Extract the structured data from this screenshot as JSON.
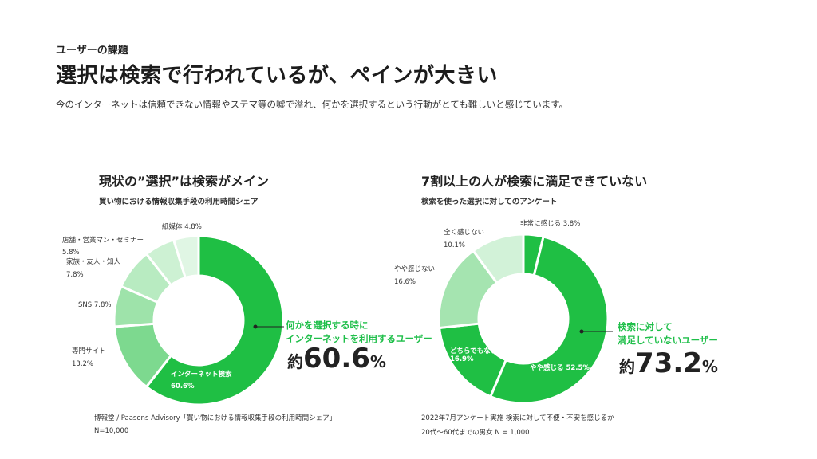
{
  "header": {
    "eyebrow": "ユーザーの課題",
    "title": "選択は検索で行われているが、ペインが大きい",
    "lead": "今のインターネットは信頼できない情報やステマ等の嘘で溢れ、何かを選択するという行動がとても難しいと感じています。"
  },
  "left": {
    "title": "現状の”選択”は検索がメイン",
    "subtitle": "買い物における情報収集手段の利用時間シェア",
    "callout_line1": "何かを選択する時に",
    "callout_line2": "インターネットを利用するユーザー",
    "big_prefix": "約",
    "big_value": "60.6",
    "big_unit": "%",
    "source_line1": "博報堂 / Paasons Advisory「買い物における情報収集手段の利用時間シェア」",
    "source_line2": "N=10,000",
    "labels": {
      "internet_name": "インターネット検索",
      "internet_value": "60.6%",
      "senmon_name": "専門サイト",
      "senmon_value": "13.2%",
      "sns": "SNS 7.8%",
      "kazoku_name": "家族・友人・知人",
      "kazoku_value": "7.8%",
      "tenpo_name": "店舗・営業マン・セミナー",
      "tenpo_value": "5.8%",
      "kami": "紙媒体 4.8%"
    }
  },
  "right": {
    "title": "7割以上の人が検索に満足できていない",
    "subtitle": "検索を使った選択に対してのアンケート",
    "callout_line1": "検索に対して",
    "callout_line2": "満足していないユーザー",
    "big_prefix": "約",
    "big_value": "73.2",
    "big_unit": "%",
    "note_line1": "2022年7月アンケート実施  検索に対して不便・不安を感じるか",
    "note_line2": "20代〜60代までの男女 N = 1,000",
    "labels": {
      "hijou": "非常に感じる 3.8%",
      "yaya_kanjiru": "やや感じる 52.5%",
      "dochira_name": "どちらでもない",
      "dochira_value": "16.9%",
      "yaya_kanjinai_name": "やや感じない",
      "yaya_kanjinai_value": "16.6%",
      "mattaku_name": "全く感じない",
      "mattaku_value": "10.1%"
    }
  },
  "chart_data": [
    {
      "type": "pie",
      "title": "現状の”選択”は検索がメイン",
      "subtitle": "買い物における情報収集手段の利用時間シェア",
      "categories": [
        "インターネット検索",
        "専門サイト",
        "SNS",
        "家族・友人・知人",
        "店舗・営業マン・セミナー",
        "紙媒体"
      ],
      "values": [
        60.6,
        13.2,
        7.8,
        7.8,
        5.8,
        4.8
      ],
      "colors": [
        "#1fbf44",
        "#7dd98f",
        "#9ee3aa",
        "#b8ebc1",
        "#cdf1d3",
        "#e0f6e4"
      ]
    },
    {
      "type": "pie",
      "title": "7割以上の人が検索に満足できていない",
      "subtitle": "検索を使った選択に対してのアンケート",
      "categories": [
        "非常に感じる",
        "やや感じる",
        "どちらでもない",
        "やや感じない",
        "全く感じない"
      ],
      "values": [
        3.8,
        52.5,
        16.9,
        16.6,
        10.1
      ],
      "colors": [
        "#1fbf44",
        "#1fbf44",
        "#1fbf44",
        "#a5e4b0",
        "#d2f2d8"
      ]
    }
  ]
}
